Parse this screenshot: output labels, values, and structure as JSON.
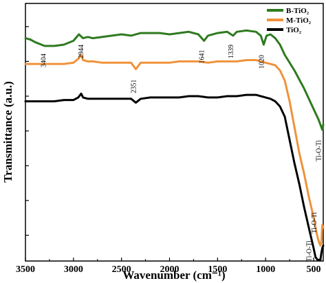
{
  "chart_data": {
    "type": "line",
    "xlabel": "Wavenumber (cm⁻¹)",
    "ylabel": "Transmittance (a.u.)",
    "xlim": [
      3500,
      400
    ],
    "ylim": [
      0,
      100
    ],
    "x_ticks": [
      "3500",
      "3000",
      "2500",
      "2000",
      "1500",
      "1000",
      "500"
    ],
    "x_tick_values": [
      3500,
      3000,
      2500,
      2000,
      1500,
      1000,
      500
    ],
    "legend_position": "top-right",
    "series": [
      {
        "name": "B-TiO₂",
        "color": "#2e7a1f",
        "x": [
          3500,
          3450,
          3400,
          3300,
          3200,
          3100,
          3000,
          2944,
          2900,
          2850,
          2800,
          2700,
          2600,
          2500,
          2400,
          2300,
          2200,
          2100,
          2000,
          1900,
          1800,
          1700,
          1641,
          1600,
          1500,
          1400,
          1339,
          1300,
          1200,
          1100,
          1050,
          1020,
          990,
          950,
          900,
          850,
          800,
          700,
          600,
          500,
          450,
          420,
          410,
          400
        ],
        "y": [
          86.5,
          86,
          85,
          83.5,
          83.5,
          84,
          85.5,
          88,
          86.5,
          87,
          86.5,
          87,
          87.5,
          88,
          87.5,
          88.5,
          88.5,
          88.5,
          88,
          88.5,
          89,
          88,
          85.5,
          87.5,
          88.5,
          89,
          87.5,
          89,
          89.5,
          89,
          87.5,
          84,
          87.5,
          88,
          86.5,
          84,
          80,
          74,
          67,
          59,
          55,
          52,
          51,
          53
        ]
      },
      {
        "name": "M-TiO₂",
        "color": "#f0923a",
        "x": [
          3500,
          3400,
          3300,
          3200,
          3100,
          3000,
          2950,
          2920,
          2900,
          2850,
          2800,
          2700,
          2600,
          2500,
          2400,
          2351,
          2300,
          2200,
          2100,
          2000,
          1900,
          1800,
          1700,
          1600,
          1500,
          1400,
          1300,
          1200,
          1100,
          1000,
          950,
          900,
          850,
          800,
          750,
          700,
          650,
          600,
          550,
          500,
          470,
          450,
          440,
          430,
          420,
          410,
          400
        ],
        "y": [
          76.5,
          76.5,
          76.5,
          76.5,
          76.5,
          77,
          78.5,
          80,
          78,
          77.5,
          77.5,
          77,
          77,
          77,
          77,
          74.5,
          77,
          77,
          77,
          77,
          77.5,
          77.5,
          77.5,
          77,
          77.5,
          77.5,
          77.5,
          78,
          78,
          77,
          76.5,
          76,
          74,
          70,
          62,
          52,
          42,
          34,
          25,
          17,
          11,
          8,
          7,
          6,
          7,
          14,
          13
        ]
      },
      {
        "name": "TiO₂",
        "color": "#000000",
        "x": [
          3500,
          3400,
          3300,
          3200,
          3100,
          3000,
          2950,
          2920,
          2900,
          2850,
          2800,
          2700,
          2600,
          2500,
          2400,
          2351,
          2300,
          2200,
          2100,
          2000,
          1900,
          1800,
          1700,
          1600,
          1500,
          1400,
          1300,
          1200,
          1100,
          1000,
          950,
          900,
          850,
          800,
          750,
          700,
          650,
          600,
          550,
          500,
          480,
          460,
          450,
          440,
          430,
          420,
          410,
          400
        ],
        "y": [
          62,
          62,
          62,
          62,
          62.5,
          62.5,
          63.5,
          65,
          63.5,
          63,
          63,
          63,
          63,
          63,
          63,
          61.5,
          63,
          63.5,
          63.5,
          63.5,
          63.5,
          64,
          64,
          63.5,
          63.5,
          64,
          64,
          64.5,
          64.5,
          63.5,
          63,
          62,
          60,
          56,
          47,
          38,
          30,
          21,
          13,
          5,
          1.5,
          0.5,
          0.3,
          0.5,
          0.3,
          3,
          5,
          6
        ]
      }
    ],
    "annotations": [
      {
        "text": "3404",
        "x": 3290,
        "y": 80.5
      },
      {
        "text": "2944",
        "x": 2900,
        "y": 84
      },
      {
        "text": "2351",
        "x": 2351,
        "y": 70.5
      },
      {
        "text": "1641",
        "x": 1641,
        "y": 82
      },
      {
        "text": "1339",
        "x": 1339,
        "y": 84
      },
      {
        "text": "1020",
        "x": 1020,
        "y": 80
      },
      {
        "text": "Ti-O-Ti",
        "x": 425,
        "y": 47
      },
      {
        "text": "Ti-O-Ti",
        "x": 470,
        "y": 19
      },
      {
        "text": "Ti-O-Ti",
        "x": 525,
        "y": 8
      }
    ]
  }
}
